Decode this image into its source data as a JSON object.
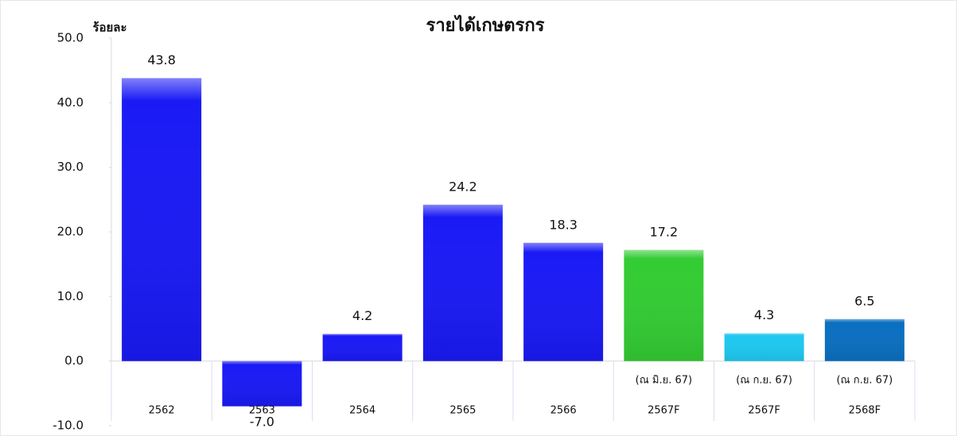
{
  "chart_data": {
    "type": "bar",
    "title": "รายได้เกษตรกร",
    "y_label": "ร้อยละ",
    "categories": [
      "2562",
      "2563",
      "2564",
      "2565",
      "2566",
      "2567F",
      "2567F",
      "2568F"
    ],
    "category_notes": [
      null,
      null,
      null,
      null,
      null,
      "(ณ มิ.ย. 67)",
      "(ณ ก.ย. 67)",
      "(ณ ก.ย. 67)"
    ],
    "values": [
      43.8,
      -7.0,
      4.2,
      24.2,
      18.3,
      17.2,
      4.3,
      6.5
    ],
    "value_labels": [
      "43.8",
      "-7.0",
      "4.2",
      "24.2",
      "18.3",
      "17.2",
      "4.3",
      "6.5"
    ],
    "colors": [
      "#1a1af5",
      "#1a1af5",
      "#1a1af5",
      "#1a1af5",
      "#1a1af5",
      "#33cc33",
      "#1ec8f0",
      "#0a6fc0"
    ],
    "negative_color": "#ff0000",
    "ylim": [
      -10,
      50
    ],
    "yticks": [
      {
        "value": -10,
        "label": "-10.0"
      },
      {
        "value": 0,
        "label": "0.0"
      },
      {
        "value": 10,
        "label": "10.0"
      },
      {
        "value": 20,
        "label": "20.0"
      },
      {
        "value": 30,
        "label": "30.0"
      },
      {
        "value": 40,
        "label": "40.0"
      },
      {
        "value": 50,
        "label": "50.0"
      }
    ]
  }
}
